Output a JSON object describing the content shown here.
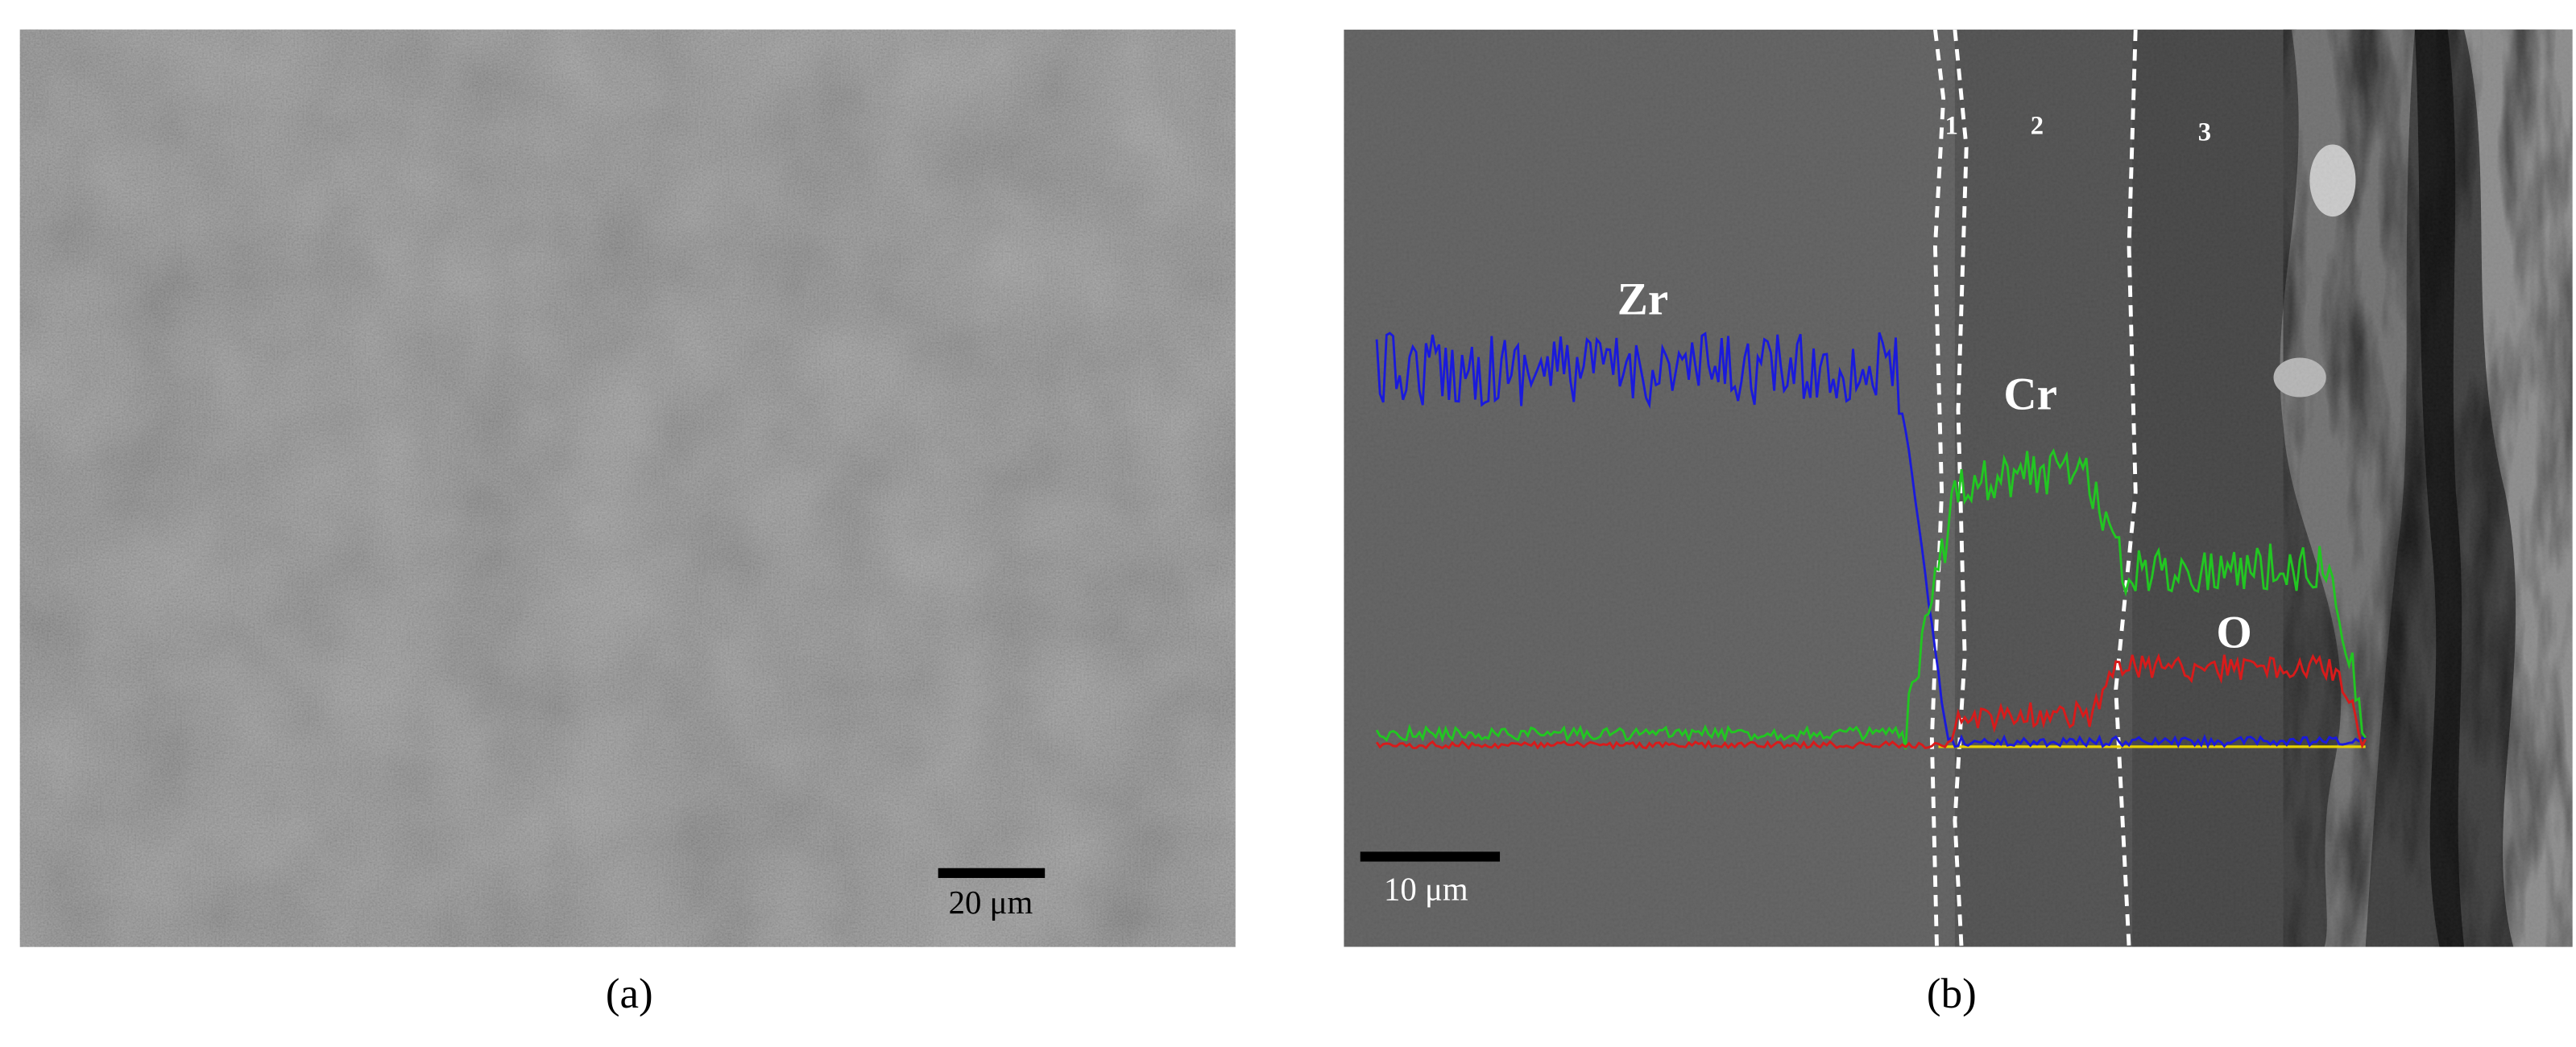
{
  "panels": [
    {
      "label": "(a)",
      "scale_bar": "20 μm"
    },
    {
      "label": "(b)",
      "scale_bar": "10 μm",
      "element_labels": [
        "Zr",
        "Cr",
        "O"
      ],
      "zone_labels": [
        "1",
        "2",
        "3"
      ]
    }
  ]
}
